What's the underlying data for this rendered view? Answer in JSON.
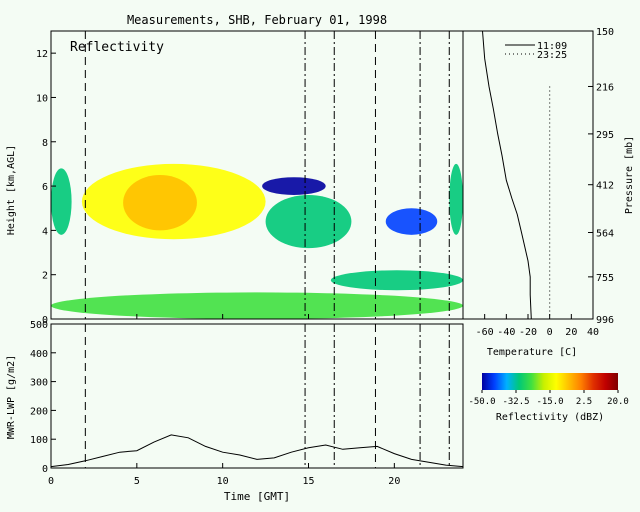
{
  "chart_data": [
    {
      "type": "heatmap",
      "title": "Measurements, SHB, February 01, 1998",
      "panel_label": "Reflectivity",
      "ylabel": "Height [km,AGL]",
      "xlim": [
        0,
        24
      ],
      "ylim": [
        0,
        13
      ],
      "yticks": [
        0,
        2,
        4,
        6,
        8,
        10,
        12
      ],
      "xticks": [
        0,
        5,
        10,
        15,
        20
      ],
      "markers": [
        {
          "time": 2.0,
          "style": "dashed"
        },
        {
          "time": 14.8,
          "style": "dashdot"
        },
        {
          "time": 16.5,
          "style": "dashdot"
        },
        {
          "time": 18.9,
          "style": "dashed"
        },
        {
          "time": 21.5,
          "style": "dashdot"
        },
        {
          "time": 23.2,
          "style": "dashdot"
        }
      ],
      "echoes": [
        {
          "t0": 0,
          "t1": 24,
          "base": 0.0,
          "top": 1.2,
          "dbz": -25
        },
        {
          "t0": 1.8,
          "t1": 12.5,
          "base": 3.6,
          "top": 7.0,
          "dbz": -15
        },
        {
          "t0": 4.2,
          "t1": 8.5,
          "base": 4.0,
          "top": 6.5,
          "dbz": -8
        },
        {
          "t0": 12.5,
          "t1": 17.5,
          "base": 3.2,
          "top": 5.6,
          "dbz": -28
        },
        {
          "t0": 0,
          "t1": 1.2,
          "base": 3.8,
          "top": 6.8,
          "dbz": -30
        },
        {
          "t0": 12.3,
          "t1": 16.0,
          "base": 5.6,
          "top": 6.4,
          "dbz": -45
        },
        {
          "t0": 19.5,
          "t1": 22.5,
          "base": 3.8,
          "top": 5.0,
          "dbz": -42
        },
        {
          "t0": 23.2,
          "t1": 24,
          "base": 3.8,
          "top": 7.0,
          "dbz": -30
        },
        {
          "t0": 16.3,
          "t1": 24,
          "base": 1.3,
          "top": 2.2,
          "dbz": -28
        }
      ]
    },
    {
      "type": "line",
      "ylabel": "MWR-LWP [g/m2]",
      "xlabel": "Time [GMT]",
      "xlim": [
        0,
        24
      ],
      "ylim": [
        0,
        500
      ],
      "yticks": [
        0,
        100,
        200,
        300,
        400,
        500
      ],
      "xticks": [
        0,
        5,
        10,
        15,
        20
      ],
      "x": [
        0,
        1,
        2,
        3,
        4,
        5,
        6,
        7,
        8,
        9,
        10,
        11,
        12,
        13,
        14,
        15,
        16,
        17,
        18,
        19,
        20,
        21,
        22,
        23,
        24
      ],
      "y": [
        5,
        12,
        25,
        40,
        55,
        60,
        90,
        115,
        105,
        75,
        55,
        45,
        30,
        35,
        55,
        70,
        80,
        65,
        70,
        75,
        50,
        30,
        20,
        10,
        5
      ]
    },
    {
      "type": "line",
      "xlabel": "Temperature [C]",
      "ylabel": "Pressure [mb]",
      "pressure_ticks": [
        150,
        216,
        295,
        412,
        564,
        755,
        996
      ],
      "xticks": [
        -60,
        -40,
        -20,
        0,
        20,
        40
      ],
      "xlim": [
        -80,
        40
      ],
      "series": [
        {
          "name": "11:09",
          "x": [
            -62,
            -60,
            -56,
            -52,
            -48,
            -44,
            -40,
            -35,
            -30,
            -26,
            -23,
            -20,
            -18,
            -18,
            -17
          ],
          "pressure": [
            150,
            180,
            216,
            250,
            295,
            340,
            400,
            450,
            500,
            564,
            620,
            680,
            755,
            850,
            996
          ]
        },
        {
          "name": "23:25",
          "x": [
            0,
            0
          ],
          "pressure": [
            216,
            996
          ]
        }
      ]
    },
    {
      "type": "colorbar",
      "label": "Reflectivity (dBZ)",
      "ticks": [
        "-50.0",
        "-32.5",
        "-15.0",
        "2.5",
        "20.0"
      ],
      "range": [
        -50,
        20
      ],
      "colors": [
        "#0000a0",
        "#0040ff",
        "#00b0ff",
        "#00c878",
        "#40e040",
        "#c8f000",
        "#ffff00",
        "#ffc000",
        "#ff8000",
        "#e03000",
        "#c00000",
        "#800000"
      ]
    }
  ]
}
